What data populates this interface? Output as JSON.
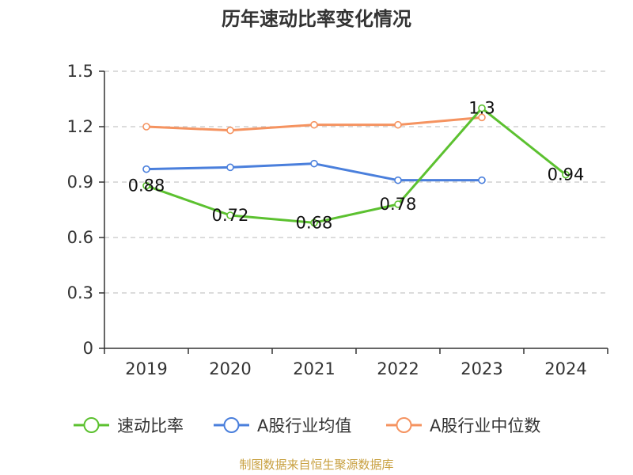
{
  "chart_data": {
    "type": "line",
    "title": "历年速动比率变化情况",
    "categories": [
      "2019",
      "2020",
      "2021",
      "2022",
      "2023",
      "2024"
    ],
    "ylim": [
      0,
      1.5
    ],
    "yticks": [
      "0",
      "0.3",
      "0.6",
      "0.9",
      "1.2",
      "1.5"
    ],
    "grid": true,
    "legend_position": "bottom",
    "series": [
      {
        "name": "速动比率",
        "color": "#5cc130",
        "values": [
          0.88,
          0.72,
          0.68,
          0.78,
          1.3,
          0.94
        ],
        "labels": [
          "0.88",
          "0.72",
          "0.68",
          "0.78",
          "1.3",
          "0.94"
        ]
      },
      {
        "name": "A股行业均值",
        "color": "#4a7fdc",
        "values": [
          0.97,
          0.98,
          1.0,
          0.91,
          0.91,
          null
        ]
      },
      {
        "name": "A股行业中位数",
        "color": "#f59360",
        "values": [
          1.2,
          1.18,
          1.21,
          1.21,
          1.25,
          null
        ]
      }
    ]
  },
  "footer": {
    "source": "制图数据来自恒生聚源数据库"
  }
}
